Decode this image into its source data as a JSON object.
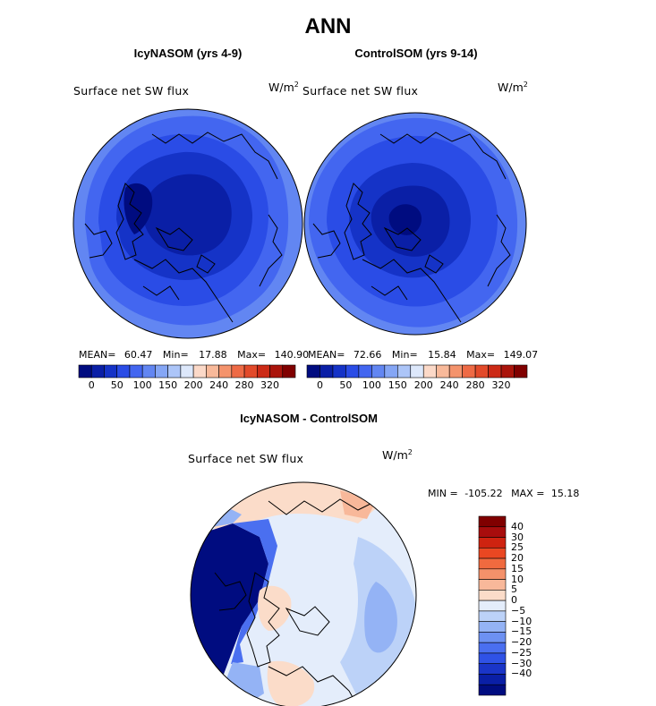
{
  "figure": {
    "title": "ANN"
  },
  "panels": {
    "left": {
      "title": "IcyNASOM (yrs 4-9)",
      "variable": "Surface net SW flux",
      "units_base": "W/m",
      "units_exp": "2",
      "mean_label": "MEAN=",
      "mean": "60.47",
      "min_label": "Min=",
      "min": "17.88",
      "max_label": "Max=",
      "max": "140.90"
    },
    "right": {
      "title": "ControlSOM (yrs 9-14)",
      "variable": "Surface net SW flux",
      "units_base": "W/m",
      "units_exp": "2",
      "mean_label": "MEAN=",
      "mean": "72.66",
      "min_label": "Min=",
      "min": "15.84",
      "max_label": "Max=",
      "max": "149.07"
    },
    "diff": {
      "title": "IcyNASOM - ControlSOM",
      "variable": "Surface net SW flux",
      "units_base": "W/m",
      "units_exp": "2",
      "min_label": "MIN =",
      "min": "-105.22",
      "max_label": "MAX =",
      "max": "15.18"
    }
  },
  "chart_data": [
    {
      "type": "heatmap",
      "projection": "north-polar-stereographic",
      "title": "IcyNASOM (yrs 4-9)",
      "variable": "Surface net SW flux",
      "units": "W/m2",
      "mean": 60.47,
      "min": 17.88,
      "max": 140.9,
      "colorbar": {
        "orientation": "horizontal",
        "tick_labels": [
          "0",
          "50",
          "100",
          "150",
          "200",
          "240",
          "280",
          "320"
        ],
        "colors": [
          "#000c80",
          "#0a1fa6",
          "#1533c7",
          "#2a4ce6",
          "#4366f0",
          "#6286f2",
          "#85a6f5",
          "#acc5f8",
          "#dde8fb",
          "#fbd9c8",
          "#f8b99a",
          "#f4936c",
          "#ee6a45",
          "#e24a2a",
          "#cc2a16",
          "#aa140b",
          "#800000"
        ]
      },
      "region_levels": {
        "outer_ring": 150,
        "mid_ring": 100,
        "inner": 50,
        "core": 25
      }
    },
    {
      "type": "heatmap",
      "projection": "north-polar-stereographic",
      "title": "ControlSOM (yrs 9-14)",
      "variable": "Surface net SW flux",
      "units": "W/m2",
      "mean": 72.66,
      "min": 15.84,
      "max": 149.07,
      "colorbar": {
        "orientation": "horizontal",
        "tick_labels": [
          "0",
          "50",
          "100",
          "150",
          "200",
          "240",
          "280",
          "320"
        ],
        "colors": [
          "#000c80",
          "#0a1fa6",
          "#1533c7",
          "#2a4ce6",
          "#4366f0",
          "#6286f2",
          "#85a6f5",
          "#acc5f8",
          "#dde8fb",
          "#fbd9c8",
          "#f8b99a",
          "#f4936c",
          "#ee6a45",
          "#e24a2a",
          "#cc2a16",
          "#aa140b",
          "#800000"
        ]
      },
      "region_levels": {
        "outer_ring": 150,
        "mid_ring": 100,
        "inner": 50,
        "core": 25
      }
    },
    {
      "type": "heatmap",
      "projection": "north-polar-stereographic",
      "title": "IcyNASOM - ControlSOM",
      "variable": "Surface net SW flux",
      "units": "W/m2",
      "min": -105.22,
      "max": 15.18,
      "colorbar": {
        "orientation": "vertical",
        "tick_labels": [
          "40",
          "30",
          "25",
          "20",
          "15",
          "10",
          "5",
          "0",
          "−5",
          "−10",
          "−15",
          "−20",
          "−25",
          "−30",
          "−40"
        ],
        "colors": [
          "#800000",
          "#a80d0d",
          "#cf2310",
          "#ea4722",
          "#f06a3f",
          "#f4916a",
          "#f8b89a",
          "#fbdcc9",
          "#e4edfb",
          "#bcd2f8",
          "#94b3f5",
          "#6d91f2",
          "#4a6ff0",
          "#2f52e6",
          "#1a35c8",
          "#0a1fa6",
          "#000c80"
        ]
      }
    }
  ]
}
